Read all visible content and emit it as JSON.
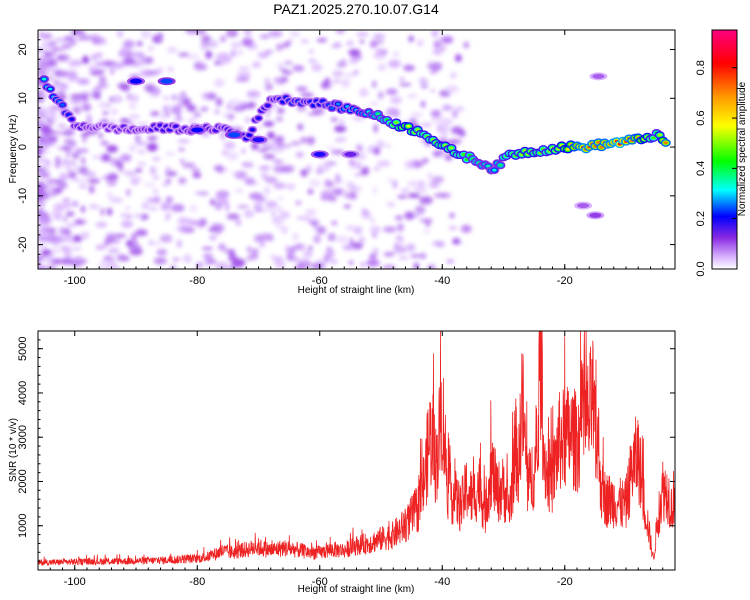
{
  "title": "PAZ1.2025.270.10.07.G14",
  "chart_data": [
    {
      "type": "heatmap",
      "name": "spectrogram",
      "xlabel": "Height of straight line (km)",
      "ylabel": "Frequency (Hz)",
      "xlim": [
        -106,
        -2
      ],
      "ylim": [
        -25,
        24
      ],
      "xticks": [
        -100,
        -80,
        -60,
        -40,
        -20
      ],
      "yticks": [
        -20,
        -10,
        0,
        10,
        20
      ],
      "colorbar": {
        "label": "Normalized spectral amplitude",
        "range": [
          0,
          0.95
        ],
        "ticks": [
          "0.0",
          "0.2",
          "0.4",
          "0.6",
          "0.8"
        ],
        "colors": [
          "#ffffff",
          "#d9b3ff",
          "#8a2be2",
          "#0000ff",
          "#00ffff",
          "#00ff00",
          "#ffff00",
          "#ff9900",
          "#ff0000",
          "#ff0080"
        ]
      },
      "main_track": [
        {
          "x": -105,
          "y": 13.5,
          "a": 0.35
        },
        {
          "x": -100,
          "y": 4.5,
          "a": 0.2
        },
        {
          "x": -95,
          "y": 4,
          "a": 0.15
        },
        {
          "x": -90,
          "y": 3.5,
          "a": 0.18
        },
        {
          "x": -85,
          "y": 4,
          "a": 0.2
        },
        {
          "x": -80,
          "y": 3.5,
          "a": 0.18
        },
        {
          "x": -76,
          "y": 4,
          "a": 0.2
        },
        {
          "x": -72,
          "y": 2,
          "a": 0.22
        },
        {
          "x": -68,
          "y": 10,
          "a": 0.2
        },
        {
          "x": -64,
          "y": 9.5,
          "a": 0.25
        },
        {
          "x": -60,
          "y": 9,
          "a": 0.22
        },
        {
          "x": -56,
          "y": 8,
          "a": 0.3
        },
        {
          "x": -52,
          "y": 7,
          "a": 0.35
        },
        {
          "x": -49,
          "y": 5.5,
          "a": 0.45
        },
        {
          "x": -46,
          "y": 4,
          "a": 0.6
        },
        {
          "x": -43,
          "y": 3,
          "a": 0.5
        },
        {
          "x": -40,
          "y": 0,
          "a": 0.55
        },
        {
          "x": -37,
          "y": -1.5,
          "a": 0.5
        },
        {
          "x": -34,
          "y": -3,
          "a": 0.4
        },
        {
          "x": -31.5,
          "y": -4.5,
          "a": 0.35
        },
        {
          "x": -29,
          "y": -1.5,
          "a": 0.5
        },
        {
          "x": -26,
          "y": -1,
          "a": 0.55
        },
        {
          "x": -23,
          "y": -0.5,
          "a": 0.5
        },
        {
          "x": -20,
          "y": 0,
          "a": 0.6
        },
        {
          "x": -17,
          "y": 0,
          "a": 0.8
        },
        {
          "x": -14,
          "y": 0.5,
          "a": 0.75
        },
        {
          "x": -11,
          "y": 1,
          "a": 0.85
        },
        {
          "x": -8,
          "y": 1.5,
          "a": 0.7
        },
        {
          "x": -5,
          "y": 2.5,
          "a": 0.45
        },
        {
          "x": -3,
          "y": 0,
          "a": 0.85
        }
      ],
      "secondary_tracks": [
        {
          "x": -90,
          "y": 13.5,
          "a": 0.22
        },
        {
          "x": -85,
          "y": 13.5,
          "a": 0.25
        },
        {
          "x": -80,
          "y": 3.5,
          "a": 0.22
        },
        {
          "x": -74,
          "y": 2.5,
          "a": 0.25
        },
        {
          "x": -70,
          "y": 1.5,
          "a": 0.2
        },
        {
          "x": -60,
          "y": -1.5,
          "a": 0.2
        },
        {
          "x": -55,
          "y": -1.5,
          "a": 0.15
        },
        {
          "x": -14.5,
          "y": 14.5,
          "a": 0.1
        },
        {
          "x": -17,
          "y": -12,
          "a": 0.1
        },
        {
          "x": -15,
          "y": -14,
          "a": 0.12
        }
      ]
    },
    {
      "type": "line",
      "name": "snr",
      "xlabel": "Height of straight line (km)",
      "ylabel": "SNR (10 * v/v)",
      "xlim": [
        -106,
        -2
      ],
      "ylim": [
        0,
        5400
      ],
      "xticks": [
        -100,
        -80,
        -60,
        -40,
        -20
      ],
      "yticks": [
        1000,
        2000,
        3000,
        4000,
        5000
      ],
      "line_color": "#ee2222",
      "series": [
        {
          "name": "SNR",
          "x": [
            -106,
            -100,
            -95,
            -90,
            -85,
            -80,
            -78,
            -76,
            -74,
            -72,
            -70,
            -68,
            -66,
            -64,
            -62,
            -60,
            -58,
            -56,
            -54,
            -52,
            -50,
            -48,
            -46,
            -44,
            -43,
            -42,
            -41,
            -40,
            -39,
            -38,
            -37,
            -36,
            -35,
            -34,
            -33,
            -32,
            -31,
            -30,
            -29,
            -28,
            -27.5,
            -27,
            -26.5,
            -26,
            -25,
            -24.5,
            -24,
            -23.5,
            -23,
            -22,
            -21,
            -20,
            -19,
            -18,
            -17,
            -16,
            -15.5,
            -15,
            -14.5,
            -14,
            -13,
            -12,
            -11,
            -10,
            -9,
            -8,
            -7,
            -6.5,
            -6,
            -5.5,
            -5,
            -4.5,
            -4,
            -3,
            -2.5,
            -2
          ],
          "y": [
            180,
            200,
            210,
            220,
            240,
            280,
            330,
            460,
            430,
            500,
            560,
            480,
            540,
            500,
            440,
            420,
            500,
            480,
            600,
            650,
            760,
            850,
            1100,
            1500,
            2100,
            3300,
            2600,
            3900,
            1900,
            1800,
            1500,
            2000,
            1700,
            2100,
            1400,
            2500,
            1900,
            2000,
            1500,
            3000,
            2500,
            4300,
            3100,
            2000,
            2500,
            2300,
            5400,
            3100,
            2400,
            2200,
            3100,
            3200,
            3300,
            3100,
            3600,
            3700,
            4300,
            3100,
            3100,
            1900,
            1700,
            1700,
            1600,
            1600,
            2500,
            2800,
            1600,
            1200,
            700,
            250,
            1000,
            1500,
            2000,
            1800,
            1500,
            2000
          ]
        }
      ]
    }
  ]
}
